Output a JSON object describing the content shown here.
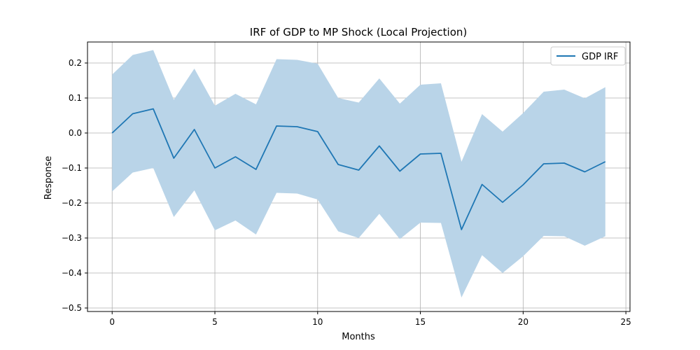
{
  "chart_data": {
    "type": "line",
    "title": "IRF of GDP to MP Shock (Local Projection)",
    "xlabel": "Months",
    "ylabel": "Response",
    "xlim": [
      -1.2,
      25.2
    ],
    "ylim": [
      -0.51,
      0.26
    ],
    "xticks": [
      0,
      5,
      10,
      15,
      20,
      25
    ],
    "yticks": [
      -0.5,
      -0.4,
      -0.3,
      -0.2,
      -0.1,
      0.0,
      0.1,
      0.2
    ],
    "ytick_labels": [
      "−0.5",
      "−0.4",
      "−0.3",
      "−0.2",
      "−0.1",
      "0.0",
      "0.1",
      "0.2"
    ],
    "grid": true,
    "legend_position": "top-right",
    "x": [
      0,
      1,
      2,
      3,
      4,
      5,
      6,
      7,
      8,
      9,
      10,
      11,
      12,
      13,
      14,
      15,
      16,
      17,
      18,
      19,
      20,
      21,
      22,
      23,
      24
    ],
    "series": [
      {
        "name": "GDP IRF",
        "color": "#1f77b4",
        "values": [
          0.0,
          0.055,
          0.069,
          -0.072,
          0.01,
          -0.1,
          -0.068,
          -0.104,
          0.02,
          0.018,
          0.004,
          -0.09,
          -0.106,
          -0.037,
          -0.109,
          -0.06,
          -0.058,
          -0.276,
          -0.147,
          -0.198,
          -0.148,
          -0.088,
          -0.086,
          -0.111,
          -0.082
        ],
        "upper": [
          0.167,
          0.223,
          0.237,
          0.095,
          0.184,
          0.078,
          0.112,
          0.082,
          0.211,
          0.209,
          0.198,
          0.1,
          0.087,
          0.156,
          0.084,
          0.138,
          0.142,
          -0.082,
          0.054,
          0.004,
          0.057,
          0.118,
          0.124,
          0.099,
          0.131
        ],
        "lower": [
          -0.167,
          -0.113,
          -0.1,
          -0.24,
          -0.164,
          -0.278,
          -0.25,
          -0.29,
          -0.171,
          -0.173,
          -0.19,
          -0.281,
          -0.3,
          -0.231,
          -0.303,
          -0.256,
          -0.257,
          -0.47,
          -0.349,
          -0.4,
          -0.352,
          -0.294,
          -0.295,
          -0.322,
          -0.295
        ],
        "band_color": "#b9d4e8"
      }
    ]
  }
}
